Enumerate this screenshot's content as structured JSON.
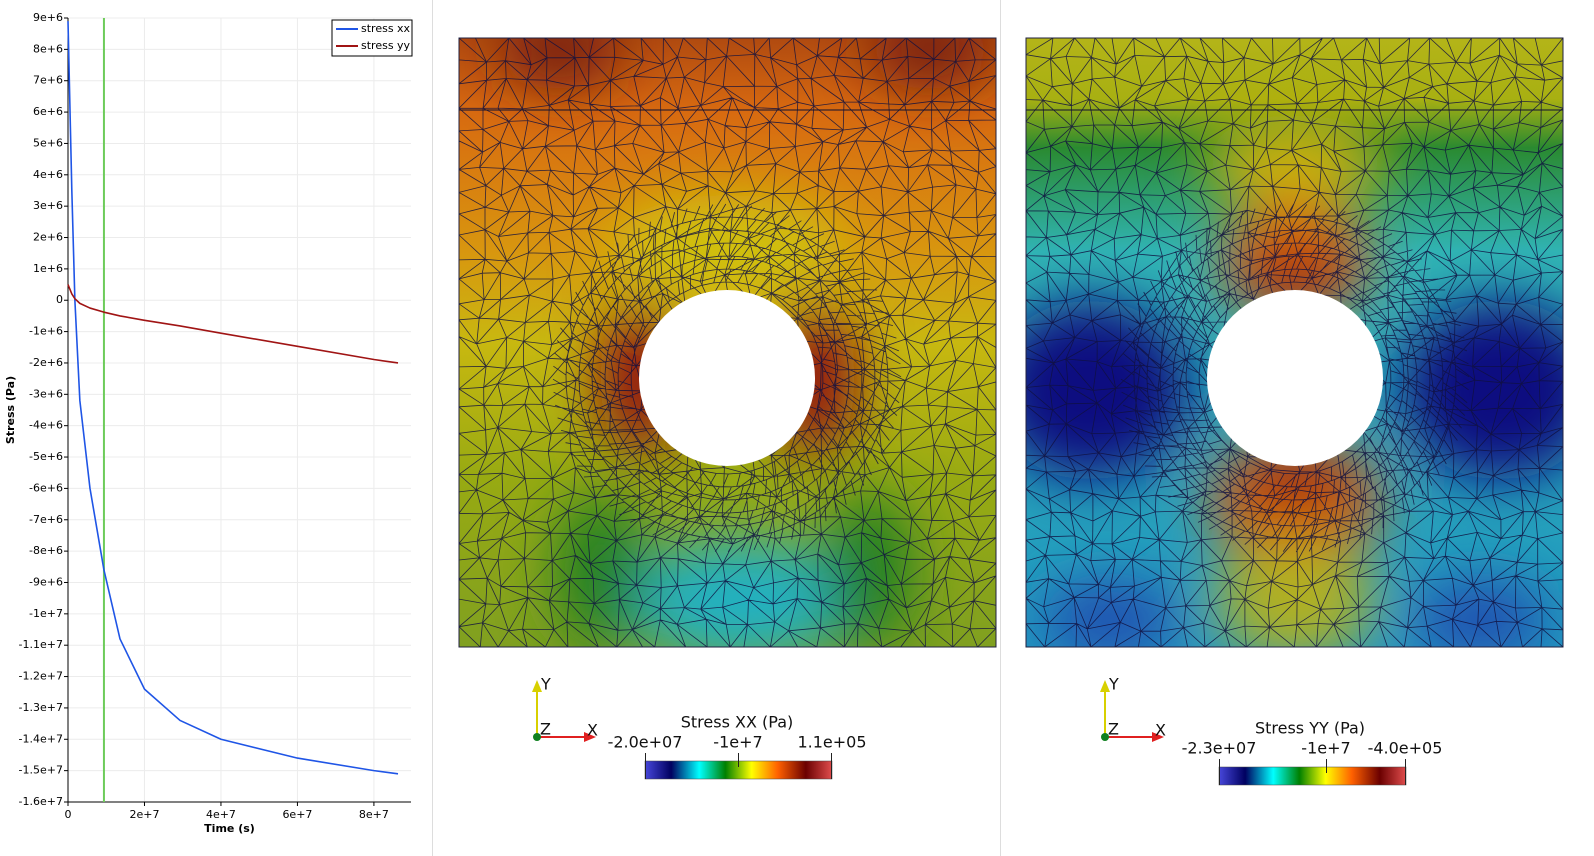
{
  "chart_data": {
    "type": "line",
    "x_label": "Time (s)",
    "y_label": "Stress (Pa)",
    "x": [
      0,
      1000000,
      1800000,
      3100000,
      5750000,
      9400000,
      13600000,
      20000000,
      29300000,
      40000000,
      60000000,
      80000000,
      86300000
    ],
    "series": [
      {
        "name": "stress xx",
        "color": "#1f55e6",
        "values": [
          8900000,
          3500000,
          0,
          -3200000,
          -6000000,
          -8600000,
          -10800000,
          -12400000,
          -13400000,
          -14000000,
          -14600000,
          -15000000,
          -15100000
        ]
      },
      {
        "name": "stress yy",
        "color": "#a01414",
        "values": [
          500000,
          200000,
          50000,
          -100000,
          -250000,
          -380000,
          -500000,
          -640000,
          -820000,
          -1050000,
          -1470000,
          -1890000,
          -2000000
        ]
      }
    ],
    "xlim": [
      0,
      89700000
    ],
    "ylim": [
      -16000000,
      9000000
    ],
    "xticks": [
      0,
      {
        "value": 20000000,
        "label": "2e+7"
      },
      {
        "value": 40000000,
        "label": "4e+7"
      },
      {
        "value": 60000000,
        "label": "6e+7"
      },
      {
        "value": 80000000,
        "label": "8e+7"
      }
    ],
    "yticks": [
      {
        "value": -16000000,
        "label": "-1.6e+7"
      },
      {
        "value": -15000000,
        "label": "-1.5e+7"
      },
      {
        "value": -14000000,
        "label": "-1.4e+7"
      },
      {
        "value": -13000000,
        "label": "-1.3e+7"
      },
      {
        "value": -12000000,
        "label": "-1.2e+7"
      },
      {
        "value": -11000000,
        "label": "-1.1e+7"
      },
      {
        "value": -10000000,
        "label": "-1e+7"
      },
      {
        "value": -9000000,
        "label": "-9e+6"
      },
      {
        "value": -8000000,
        "label": "-8e+6"
      },
      {
        "value": -7000000,
        "label": "-7e+6"
      },
      {
        "value": -6000000,
        "label": "-6e+6"
      },
      {
        "value": -5000000,
        "label": "-5e+6"
      },
      {
        "value": -4000000,
        "label": "-4e+6"
      },
      {
        "value": -3000000,
        "label": "-3e+6"
      },
      {
        "value": -2000000,
        "label": "-2e+6"
      },
      {
        "value": -1000000,
        "label": "-1e+6"
      },
      0,
      {
        "value": 1000000,
        "label": "1e+6"
      },
      {
        "value": 2000000,
        "label": "2e+6"
      },
      {
        "value": 3000000,
        "label": "3e+6"
      },
      {
        "value": 4000000,
        "label": "4e+6"
      },
      {
        "value": 5000000,
        "label": "5e+6"
      },
      {
        "value": 6000000,
        "label": "6e+6"
      },
      {
        "value": 7000000,
        "label": "7e+6"
      },
      {
        "value": 8000000,
        "label": "8e+6"
      },
      {
        "value": 9000000,
        "label": "9e+6"
      }
    ],
    "grid": true,
    "legend": "upper right",
    "current_time": 9400000,
    "current_time_color": "#6dcc5a"
  },
  "views": [
    {
      "title": "Stress XX (Pa)",
      "range_labels": [
        "-2.0e+07",
        "-1e+7",
        "1.1e+05"
      ],
      "axes": [
        "Y",
        "Z",
        "X"
      ]
    },
    {
      "title": "Stress YY (Pa)",
      "range_labels": [
        "-2.3e+07",
        "-1e+7",
        "-4.0e+05"
      ],
      "axes": [
        "Y",
        "Z",
        "X"
      ]
    }
  ]
}
